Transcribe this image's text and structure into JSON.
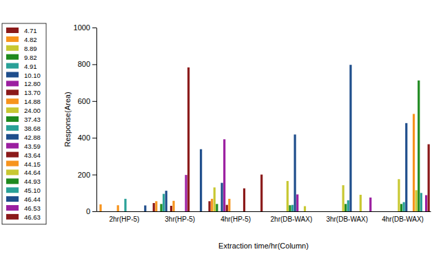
{
  "chart_data": {
    "type": "bar",
    "x_label": "Extraction time/hr(Column)",
    "y_label": "Response(Area)",
    "categories": [
      "2hr(HP-5)",
      "3hr(HP-5)",
      "4hr(HP-5)",
      "2hr(DB-WAX)",
      "3hr(DB-WAX)",
      "4hr(DB-WAX)"
    ],
    "ylim": [
      0,
      1000
    ],
    "yticks": [
      0,
      200,
      400,
      600,
      800,
      1000
    ],
    "legend": "left",
    "series": [
      {
        "name": "4.71",
        "color": "#8b1a1a",
        "values": [
          0,
          45,
          55,
          0,
          0,
          0
        ]
      },
      {
        "name": "4.82",
        "color": "#f7941d",
        "values": [
          38,
          55,
          68,
          0,
          0,
          0
        ]
      },
      {
        "name": "8.89",
        "color": "#c8c832",
        "values": [
          0,
          0,
          130,
          0,
          0,
          0
        ]
      },
      {
        "name": "9.82",
        "color": "#1f8a1f",
        "values": [
          0,
          40,
          40,
          0,
          0,
          0
        ]
      },
      {
        "name": "4.91",
        "color": "#2aa198",
        "values": [
          0,
          95,
          0,
          0,
          0,
          0
        ]
      },
      {
        "name": "10.10",
        "color": "#1f4e8c",
        "values": [
          0,
          112,
          155,
          0,
          0,
          0
        ]
      },
      {
        "name": "12.80",
        "color": "#9b1fa0",
        "values": [
          0,
          0,
          392,
          0,
          0,
          0
        ]
      },
      {
        "name": "13.70",
        "color": "#8b1a1a",
        "values": [
          0,
          30,
          35,
          0,
          0,
          0
        ]
      },
      {
        "name": "14.88",
        "color": "#f7941d",
        "values": [
          33,
          57,
          68,
          0,
          0,
          0
        ]
      },
      {
        "name": "24.00",
        "color": "#c8c832",
        "values": [
          0,
          0,
          0,
          165,
          142,
          175
        ]
      },
      {
        "name": "37.43",
        "color": "#1f8a1f",
        "values": [
          0,
          0,
          0,
          33,
          40,
          40
        ]
      },
      {
        "name": "38.68",
        "color": "#2aa198",
        "values": [
          68,
          0,
          0,
          35,
          60,
          50
        ]
      },
      {
        "name": "42.88",
        "color": "#1f4e8c",
        "values": [
          0,
          0,
          0,
          418,
          797,
          480
        ]
      },
      {
        "name": "43.59",
        "color": "#9b1fa0",
        "values": [
          0,
          198,
          0,
          92,
          0,
          0
        ]
      },
      {
        "name": "43.64",
        "color": "#8b1a1a",
        "values": [
          0,
          783,
          125,
          0,
          0,
          0
        ]
      },
      {
        "name": "44.15",
        "color": "#f7941d",
        "values": [
          0,
          0,
          0,
          0,
          0,
          530
        ]
      },
      {
        "name": "44.64",
        "color": "#c8c832",
        "values": [
          0,
          0,
          0,
          28,
          90,
          115
        ]
      },
      {
        "name": "44.93",
        "color": "#1f8a1f",
        "values": [
          0,
          0,
          0,
          0,
          0,
          712
        ]
      },
      {
        "name": "45.10",
        "color": "#2aa198",
        "values": [
          0,
          0,
          0,
          0,
          0,
          100
        ]
      },
      {
        "name": "46.44",
        "color": "#1f4e8c",
        "values": [
          32,
          338,
          0,
          0,
          0,
          0
        ]
      },
      {
        "name": "46.53",
        "color": "#9b1fa0",
        "values": [
          0,
          0,
          0,
          0,
          75,
          88
        ]
      },
      {
        "name": "46.63",
        "color": "#8b1a1a",
        "values": [
          0,
          0,
          200,
          0,
          0,
          365
        ]
      }
    ]
  }
}
